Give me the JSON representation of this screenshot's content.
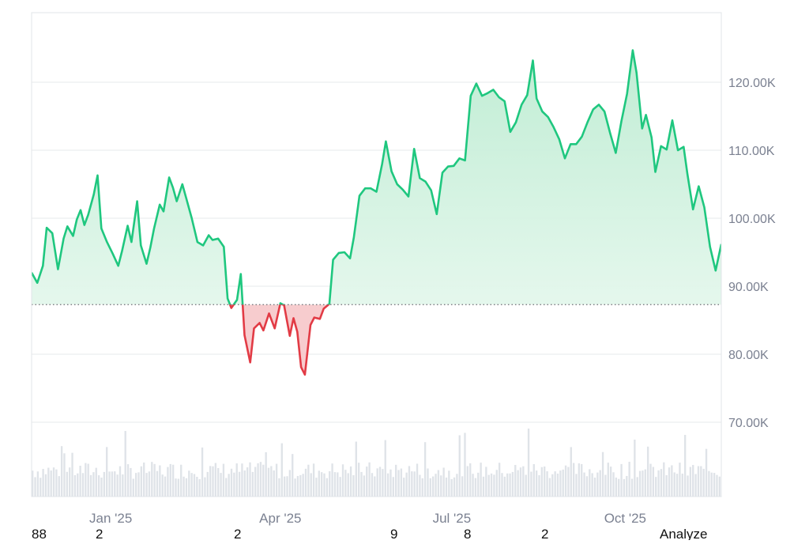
{
  "colors": {
    "up_line": "#1fc77f",
    "up_fill_top": "#bdecd2",
    "up_fill_bottom": "#eefaf3",
    "down_line": "#e23b45",
    "down_fill": "#f6c6c9",
    "grid": "#e6e8eb",
    "frame": "#e1e4e8",
    "baseline": "#6b6f76",
    "volume": "#dfe3e8",
    "axis_text": "#7b8191"
  },
  "bottom_row": [
    "88",
    "2",
    "2",
    "9",
    "8",
    "2"
  ],
  "analyze_label": "Analyze",
  "chart_data": {
    "type": "area",
    "y_ticks": [
      {
        "value": 120000,
        "label": "120.00K"
      },
      {
        "value": 110000,
        "label": "110.00K"
      },
      {
        "value": 100000,
        "label": "100.00K"
      },
      {
        "value": 90000,
        "label": "90.00K"
      },
      {
        "value": 80000,
        "label": "80.00K"
      },
      {
        "value": 70000,
        "label": "70.00K"
      }
    ],
    "x_ticks": [
      {
        "date": "2025-01-01",
        "label": "Jan '25"
      },
      {
        "date": "2025-04-01",
        "label": "Apr '25"
      },
      {
        "date": "2025-07-01",
        "label": "Jul '25"
      },
      {
        "date": "2025-10-01",
        "label": "Oct '25"
      }
    ],
    "ylim": [
      60000,
      130000
    ],
    "xlim": [
      "2024-11-20",
      "2025-11-21"
    ],
    "baseline_value": 87300,
    "grid": "horizontal",
    "series": [
      {
        "values": [
          [
            "2024-11-20",
            92000
          ],
          [
            "2024-11-23",
            90500
          ],
          [
            "2024-11-26",
            93000
          ],
          [
            "2024-11-28",
            98600
          ],
          [
            "2024-12-01",
            97800
          ],
          [
            "2024-12-04",
            92500
          ],
          [
            "2024-12-07",
            97000
          ],
          [
            "2024-12-09",
            98800
          ],
          [
            "2024-12-12",
            97400
          ],
          [
            "2024-12-14",
            99800
          ],
          [
            "2024-12-16",
            101200
          ],
          [
            "2024-12-18",
            99000
          ],
          [
            "2024-12-20",
            100500
          ],
          [
            "2024-12-23",
            103500
          ],
          [
            "2024-12-25",
            106300
          ],
          [
            "2024-12-27",
            98500
          ],
          [
            "2024-12-30",
            96500
          ],
          [
            "2025-01-02",
            94800
          ],
          [
            "2025-01-05",
            93000
          ],
          [
            "2025-01-07",
            95200
          ],
          [
            "2025-01-10",
            98900
          ],
          [
            "2025-01-12",
            96500
          ],
          [
            "2025-01-15",
            102500
          ],
          [
            "2025-01-17",
            96000
          ],
          [
            "2025-01-20",
            93300
          ],
          [
            "2025-01-22",
            95700
          ],
          [
            "2025-01-24",
            98500
          ],
          [
            "2025-01-27",
            102000
          ],
          [
            "2025-01-29",
            101000
          ],
          [
            "2025-02-01",
            106000
          ],
          [
            "2025-02-03",
            104500
          ],
          [
            "2025-02-05",
            102500
          ],
          [
            "2025-02-08",
            105000
          ],
          [
            "2025-02-10",
            103000
          ],
          [
            "2025-02-13",
            100000
          ],
          [
            "2025-02-16",
            96500
          ],
          [
            "2025-02-19",
            96000
          ],
          [
            "2025-02-22",
            97500
          ],
          [
            "2025-02-24",
            96800
          ],
          [
            "2025-02-27",
            97000
          ],
          [
            "2025-03-02",
            95800
          ],
          [
            "2025-03-04",
            88200
          ],
          [
            "2025-03-06",
            86800
          ],
          [
            "2025-03-09",
            88000
          ],
          [
            "2025-03-11",
            91800
          ],
          [
            "2025-03-13",
            82800
          ],
          [
            "2025-03-16",
            78800
          ],
          [
            "2025-03-18",
            83800
          ],
          [
            "2025-03-21",
            84600
          ],
          [
            "2025-03-23",
            83500
          ],
          [
            "2025-03-26",
            86000
          ],
          [
            "2025-03-29",
            83800
          ],
          [
            "2025-04-01",
            87500
          ],
          [
            "2025-04-03",
            87200
          ],
          [
            "2025-04-06",
            82700
          ],
          [
            "2025-04-08",
            85300
          ],
          [
            "2025-04-10",
            83300
          ],
          [
            "2025-04-12",
            78100
          ],
          [
            "2025-04-14",
            77000
          ],
          [
            "2025-04-17",
            84300
          ],
          [
            "2025-04-19",
            85400
          ],
          [
            "2025-04-22",
            85200
          ],
          [
            "2025-04-24",
            86700
          ],
          [
            "2025-04-27",
            87400
          ],
          [
            "2025-04-29",
            93900
          ],
          [
            "2025-05-02",
            94900
          ],
          [
            "2025-05-05",
            95000
          ],
          [
            "2025-05-08",
            94100
          ],
          [
            "2025-05-10",
            97200
          ],
          [
            "2025-05-13",
            103300
          ],
          [
            "2025-05-16",
            104400
          ],
          [
            "2025-05-19",
            104400
          ],
          [
            "2025-05-22",
            103900
          ],
          [
            "2025-05-25",
            108000
          ],
          [
            "2025-05-27",
            111300
          ],
          [
            "2025-05-30",
            106900
          ],
          [
            "2025-06-02",
            105000
          ],
          [
            "2025-06-05",
            104200
          ],
          [
            "2025-06-08",
            103200
          ],
          [
            "2025-06-11",
            110200
          ],
          [
            "2025-06-14",
            105900
          ],
          [
            "2025-06-17",
            105400
          ],
          [
            "2025-06-20",
            104100
          ],
          [
            "2025-06-23",
            100600
          ],
          [
            "2025-06-26",
            106700
          ],
          [
            "2025-06-29",
            107600
          ],
          [
            "2025-07-02",
            107700
          ],
          [
            "2025-07-05",
            108800
          ],
          [
            "2025-07-08",
            108500
          ],
          [
            "2025-07-11",
            118000
          ],
          [
            "2025-07-14",
            119800
          ],
          [
            "2025-07-17",
            118000
          ],
          [
            "2025-07-20",
            118400
          ],
          [
            "2025-07-23",
            118900
          ],
          [
            "2025-07-26",
            117800
          ],
          [
            "2025-07-29",
            117200
          ],
          [
            "2025-08-01",
            112700
          ],
          [
            "2025-08-04",
            114100
          ],
          [
            "2025-08-07",
            116700
          ],
          [
            "2025-08-10",
            118100
          ],
          [
            "2025-08-13",
            123200
          ],
          [
            "2025-08-15",
            117600
          ],
          [
            "2025-08-18",
            115700
          ],
          [
            "2025-08-21",
            114900
          ],
          [
            "2025-08-24",
            113400
          ],
          [
            "2025-08-27",
            111600
          ],
          [
            "2025-08-30",
            108800
          ],
          [
            "2025-09-02",
            110900
          ],
          [
            "2025-09-05",
            110900
          ],
          [
            "2025-09-08",
            112000
          ],
          [
            "2025-09-11",
            114100
          ],
          [
            "2025-09-14",
            116000
          ],
          [
            "2025-09-17",
            116700
          ],
          [
            "2025-09-20",
            115700
          ],
          [
            "2025-09-23",
            112500
          ],
          [
            "2025-09-26",
            109600
          ],
          [
            "2025-09-29",
            114300
          ],
          [
            "2025-10-02",
            118300
          ],
          [
            "2025-10-05",
            124700
          ],
          [
            "2025-10-07",
            121400
          ],
          [
            "2025-10-10",
            113200
          ],
          [
            "2025-10-12",
            115200
          ],
          [
            "2025-10-15",
            111900
          ],
          [
            "2025-10-17",
            106800
          ],
          [
            "2025-10-20",
            110600
          ],
          [
            "2025-10-23",
            110100
          ],
          [
            "2025-10-26",
            114400
          ],
          [
            "2025-10-29",
            110000
          ],
          [
            "2025-11-01",
            110500
          ],
          [
            "2025-11-03",
            106500
          ],
          [
            "2025-11-06",
            101300
          ],
          [
            "2025-11-09",
            104700
          ],
          [
            "2025-11-12",
            101600
          ],
          [
            "2025-11-15",
            95800
          ],
          [
            "2025-11-18",
            92300
          ],
          [
            "2025-11-21",
            96200
          ]
        ]
      }
    ],
    "volume": {
      "relative_bars": "spiky series, near-equal heights with occasional tall spikes"
    }
  }
}
